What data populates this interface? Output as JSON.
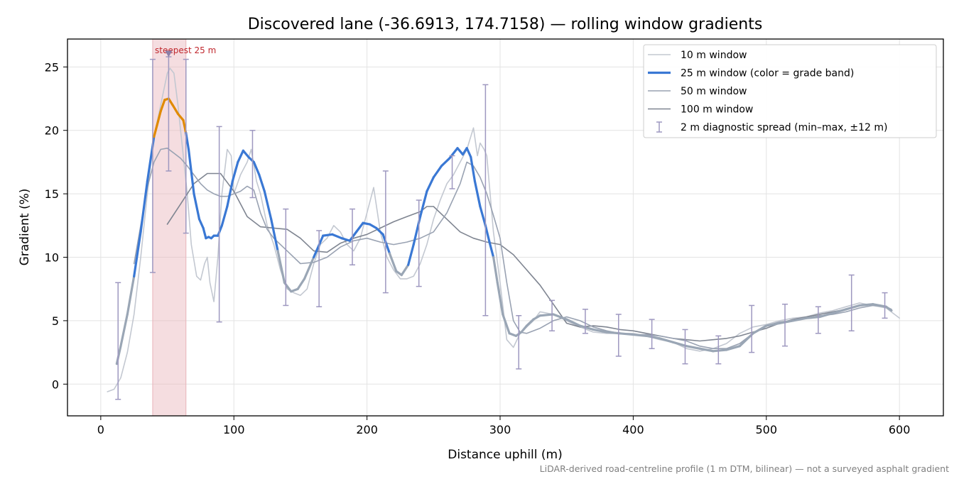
{
  "chart_data": {
    "type": "line",
    "title": "Discovered lane (-36.6913, 174.7158) — rolling window gradients",
    "xlabel": "Distance uphill (m)",
    "ylabel": "Gradient (%)",
    "xlim": [
      -25,
      633
    ],
    "ylim": [
      -2.5,
      27.2
    ],
    "xticks": [
      0,
      100,
      200,
      300,
      400,
      500,
      600
    ],
    "yticks": [
      0,
      5,
      10,
      15,
      20,
      25
    ],
    "grid": true,
    "legend_position": "top-right",
    "footnote": "LiDAR-derived road-centreline profile (1 m DTM, bilinear) — not a surveyed asphalt gradient",
    "highlight": {
      "x_range": [
        39,
        64
      ],
      "annotation": "steepest 25 m",
      "marker_x": 51,
      "marker_y": 26.0
    },
    "colors": {
      "window_10": "#c3c8d1",
      "window_25": "#3a78d4",
      "window_25_steep": "#e08a00",
      "window_25_moderate": "#9aa6b5",
      "window_50": "#99a2b2",
      "window_100": "#7f8591",
      "errorbar": "#9e98c0",
      "highlight_band": "#e8b4ba",
      "annotation": "#c0272d"
    },
    "series": [
      {
        "name": "10 m window",
        "x": [
          5,
          10,
          15,
          20,
          25,
          30,
          35,
          40,
          45,
          50,
          52,
          55,
          58,
          62,
          65,
          68,
          72,
          75,
          78,
          80,
          82,
          85,
          88,
          91,
          95,
          98,
          100,
          105,
          110,
          113,
          117,
          120,
          125,
          130,
          135,
          140,
          145,
          150,
          155,
          160,
          165,
          170,
          175,
          180,
          185,
          190,
          195,
          200,
          205,
          210,
          215,
          220,
          225,
          230,
          235,
          240,
          245,
          250,
          255,
          260,
          265,
          270,
          275,
          280,
          283,
          285,
          288,
          290,
          295,
          300,
          305,
          310,
          315,
          320,
          325,
          330,
          340,
          350,
          360,
          370,
          380,
          390,
          400,
          410,
          420,
          430,
          440,
          450,
          460,
          470,
          480,
          490,
          500,
          510,
          520,
          530,
          540,
          550,
          560,
          570,
          580,
          590,
          600
        ],
        "values": [
          -0.6,
          -0.4,
          0.5,
          2.5,
          5.5,
          10,
          15,
          19.5,
          22,
          24.5,
          24.9,
          24.5,
          22,
          18,
          15,
          11,
          8.5,
          8.2,
          9.5,
          10,
          8,
          6.5,
          10,
          15,
          18.5,
          18,
          15,
          16.5,
          17.5,
          18.5,
          16,
          15,
          12.5,
          11,
          9,
          7.5,
          7.2,
          7,
          7.5,
          9.5,
          11,
          11.5,
          12.5,
          12,
          11,
          10.5,
          11.5,
          13.5,
          15.5,
          12,
          10,
          9,
          8.3,
          8.3,
          8.5,
          9.5,
          11,
          13,
          14.5,
          15.8,
          16.5,
          17.5,
          18.5,
          20.2,
          18,
          19,
          18.5,
          18,
          12,
          8,
          3.5,
          2.9,
          4,
          4.5,
          5,
          5.7,
          5.5,
          5,
          4.5,
          4.1,
          4.0,
          4.0,
          4.0,
          3.8,
          3.5,
          3.3,
          2.8,
          2.6,
          2.8,
          3.2,
          4,
          4.5,
          4.7,
          5,
          5.2,
          5.3,
          5.6,
          5.8,
          6.1,
          6.4,
          6.2,
          6,
          5.2
        ]
      },
      {
        "name": "25 m window (color = grade band)",
        "x": [
          12,
          15,
          20,
          25,
          30,
          35,
          40,
          45,
          48,
          51,
          54,
          58,
          62,
          64,
          66,
          70,
          74,
          77,
          79,
          81,
          83,
          85,
          88,
          91,
          95,
          99,
          103,
          107,
          111,
          115,
          119,
          123,
          128,
          133,
          138,
          143,
          148,
          153,
          160,
          167,
          174,
          181,
          187,
          192,
          197,
          202,
          207,
          212,
          217,
          222,
          226,
          231,
          235,
          240,
          245,
          250,
          256,
          262,
          268,
          272,
          275,
          278,
          281,
          285,
          289,
          292,
          295,
          298,
          302,
          307,
          312,
          316,
          320,
          325,
          330,
          340,
          350,
          360,
          370,
          380,
          390,
          400,
          410,
          420,
          430,
          440,
          450,
          460,
          470,
          480,
          490,
          500,
          510,
          520,
          530,
          540,
          550,
          560,
          570,
          580,
          590,
          594
        ],
        "values": [
          1.6,
          3,
          5.5,
          8.5,
          12,
          16,
          19.5,
          21.5,
          22.4,
          22.5,
          22,
          21.3,
          20.8,
          19.8,
          18.5,
          15,
          13,
          12.3,
          11.5,
          11.6,
          11.5,
          11.7,
          11.7,
          12.5,
          14,
          16,
          17.5,
          18.4,
          17.9,
          17.5,
          16.5,
          15.2,
          13,
          10.5,
          8,
          7.3,
          7.5,
          8.3,
          10,
          11.7,
          11.8,
          11.5,
          11.3,
          12,
          12.7,
          12.6,
          12.3,
          11.8,
          10.3,
          8.9,
          8.6,
          9.4,
          11,
          13.2,
          15.2,
          16.3,
          17.2,
          17.8,
          18.6,
          18.1,
          18.6,
          17.9,
          16,
          14,
          12.5,
          11.2,
          10,
          8,
          5.5,
          4,
          3.8,
          4.1,
          4.6,
          5.1,
          5.4,
          5.5,
          5.1,
          4.6,
          4.3,
          4.1,
          4.0,
          3.9,
          3.8,
          3.6,
          3.3,
          3.0,
          2.8,
          2.6,
          2.7,
          3.0,
          4.0,
          4.6,
          4.8,
          5.0,
          5.2,
          5.3,
          5.6,
          5.9,
          6.2,
          6.3,
          6.1,
          5.8
        ]
      },
      {
        "name": "50 m window",
        "x": [
          25,
          30,
          35,
          40,
          45,
          50,
          55,
          60,
          65,
          70,
          75,
          80,
          85,
          90,
          95,
          100,
          105,
          110,
          115,
          120,
          125,
          130,
          140,
          150,
          160,
          170,
          180,
          190,
          200,
          210,
          220,
          230,
          240,
          250,
          260,
          270,
          275,
          280,
          285,
          290,
          295,
          300,
          305,
          310,
          315,
          320,
          330,
          340,
          350,
          360,
          370,
          380,
          390,
          400,
          410,
          420,
          430,
          440,
          450,
          460,
          470,
          480,
          490,
          500,
          510,
          520,
          530,
          540,
          550,
          560,
          570,
          580,
          590,
          594
        ],
        "values": [
          9.5,
          12.5,
          15.5,
          17.5,
          18.5,
          18.6,
          18.2,
          17.8,
          17.2,
          16.5,
          15.8,
          15.3,
          15.0,
          14.8,
          14.8,
          15.0,
          15.2,
          15.6,
          15.3,
          13.5,
          12.2,
          11.5,
          10.5,
          9.5,
          9.6,
          10,
          10.8,
          11.3,
          11.5,
          11.2,
          11.0,
          11.2,
          11.5,
          12,
          13.5,
          15.8,
          17.5,
          17.2,
          16.3,
          15,
          13.3,
          11.5,
          8,
          5,
          4.1,
          4.0,
          4.4,
          5.0,
          5.3,
          5.0,
          4.5,
          4.2,
          4.0,
          3.9,
          3.9,
          3.8,
          3.6,
          3.4,
          3.0,
          2.8,
          2.8,
          3.2,
          4.0,
          4.6,
          4.9,
          5.0,
          5.2,
          5.4,
          5.5,
          5.7,
          6.0,
          6.2,
          6.1,
          5.9
        ]
      },
      {
        "name": "100 m window",
        "x": [
          50,
          60,
          70,
          80,
          90,
          100,
          110,
          120,
          130,
          140,
          150,
          160,
          170,
          180,
          190,
          200,
          210,
          220,
          230,
          240,
          245,
          250,
          260,
          270,
          280,
          290,
          300,
          310,
          320,
          330,
          340,
          350,
          360,
          370,
          380,
          390,
          400,
          410,
          420,
          430,
          440,
          450,
          460,
          470,
          480,
          490,
          500,
          510,
          520,
          530,
          540,
          550,
          560
        ],
        "values": [
          12.6,
          14.2,
          15.8,
          16.6,
          16.6,
          15.2,
          13.2,
          12.4,
          12.3,
          12.2,
          11.5,
          10.5,
          10.4,
          11.1,
          11.5,
          11.8,
          12.3,
          12.8,
          13.2,
          13.6,
          14.0,
          14.0,
          13.0,
          12.0,
          11.5,
          11.2,
          11.0,
          10.2,
          9.0,
          7.8,
          6.3,
          4.8,
          4.5,
          4.6,
          4.5,
          4.3,
          4.2,
          4.0,
          3.8,
          3.6,
          3.5,
          3.4,
          3.5,
          3.6,
          3.8,
          4.1,
          4.4,
          4.8,
          5.1,
          5.3,
          5.5,
          5.7,
          5.9
        ]
      }
    ],
    "errorbars": {
      "name": "2 m diagnostic spread (min–max, ±12 m)",
      "x": [
        13,
        39,
        51,
        64,
        89,
        114,
        139,
        164,
        189,
        214,
        239,
        264,
        289,
        314,
        339,
        364,
        389,
        414,
        439,
        464,
        489,
        514,
        539,
        564,
        589
      ],
      "min": [
        -1.2,
        8.8,
        16.8,
        11.9,
        4.9,
        14.7,
        6.2,
        6.1,
        9.4,
        7.2,
        7.7,
        15.4,
        5.4,
        1.2,
        4.2,
        4.0,
        2.2,
        2.8,
        1.6,
        1.6,
        2.5,
        3.0,
        4.0,
        4.2,
        5.2
      ],
      "max": [
        8.0,
        25.6,
        25.8,
        25.6,
        20.3,
        20.0,
        13.8,
        12.1,
        13.8,
        16.8,
        14.5,
        18.0,
        23.6,
        5.4,
        6.6,
        5.9,
        5.5,
        5.1,
        4.3,
        3.8,
        6.2,
        6.3,
        6.1,
        8.6,
        7.2
      ],
      "center": [
        1.9,
        13.4,
        22.5,
        19.8,
        12.7,
        17.7,
        8.0,
        8.3,
        11.8,
        12.5,
        9.5,
        16.6,
        14.0,
        3.8,
        5.5,
        4.8,
        4.2,
        4.1,
        3.5,
        2.7,
        3.1,
        4.9,
        5.3,
        5.9,
        6.3
      ]
    }
  }
}
